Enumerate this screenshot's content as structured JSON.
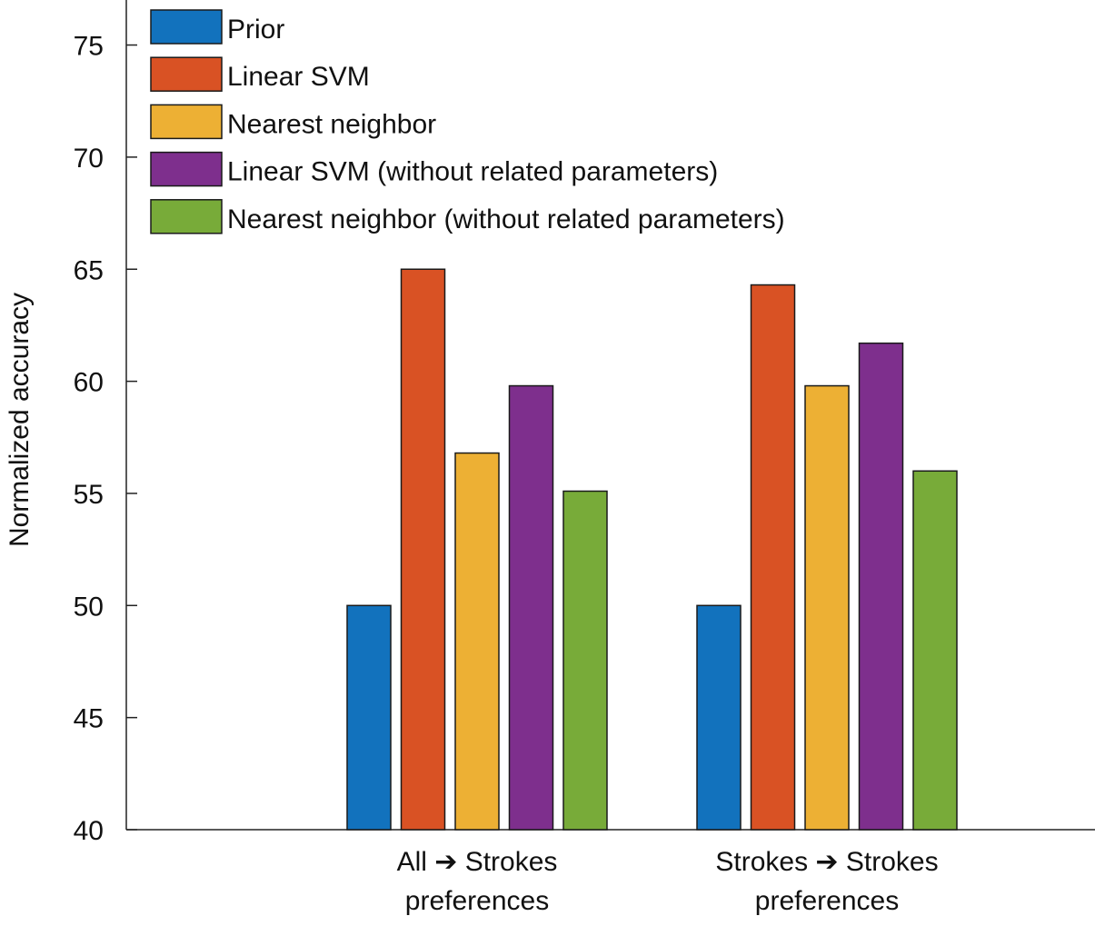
{
  "chart_data": {
    "type": "bar",
    "ylabel": "Normalized accuracy",
    "ylim": [
      40,
      77
    ],
    "yticks": [
      40,
      45,
      50,
      55,
      60,
      65,
      70,
      75
    ],
    "categories": [
      {
        "lines": [
          "All ➔ Strokes",
          "preferences"
        ]
      },
      {
        "lines": [
          "Strokes ➔ Strokes",
          "preferences"
        ]
      }
    ],
    "series": [
      {
        "name": "Prior",
        "color": "#1272bd",
        "values": [
          50.0,
          50.0
        ]
      },
      {
        "name": "Linear SVM",
        "color": "#d95224",
        "values": [
          65.0,
          64.3
        ]
      },
      {
        "name": "Nearest neighbor",
        "color": "#edb034",
        "values": [
          56.8,
          59.8
        ]
      },
      {
        "name": "Linear SVM (without related parameters)",
        "color": "#7e2f8d",
        "values": [
          59.8,
          61.7
        ]
      },
      {
        "name": "Nearest neighbor (without related parameters)",
        "color": "#78ab39",
        "values": [
          55.1,
          56.0
        ]
      }
    ],
    "legend": {
      "position": "top-left"
    },
    "grid": false
  }
}
